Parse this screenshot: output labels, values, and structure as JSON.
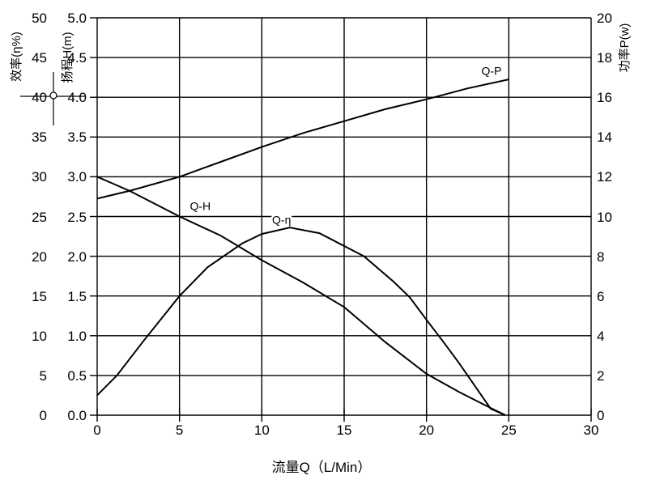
{
  "chart_data": {
    "type": "line",
    "grid": "on",
    "x_axis": {
      "label": "流量Q（L/Min）",
      "min": 0,
      "max": 30,
      "tick_step": 5,
      "ticks": [
        "0",
        "5",
        "10",
        "15",
        "20",
        "25",
        "30"
      ]
    },
    "left_axis_efficiency": {
      "label": "效率(η%)",
      "min": 0,
      "max": 50,
      "tick_step": 5,
      "ticks": [
        "50",
        "45",
        "40",
        "35",
        "30",
        "25",
        "20",
        "15",
        "10",
        "5",
        "0"
      ]
    },
    "left_axis_head": {
      "label": "扬程H(m)",
      "min": 0,
      "max": 5,
      "tick_step": 0.5,
      "ticks": [
        "5.0",
        "4.5",
        "4.0",
        "3.5",
        "3.0",
        "2.5",
        "2.0",
        "1.5",
        "1.0",
        "0.5",
        "0.0"
      ]
    },
    "right_axis_power": {
      "label": "功率P(w)",
      "min": 0,
      "max": 20,
      "tick_step": 2,
      "ticks": [
        "20",
        "18",
        "16",
        "14",
        "12",
        "10",
        "8",
        "6",
        "4",
        "2",
        "0"
      ]
    },
    "series": [
      {
        "id": "q-p",
        "name": "Q-P",
        "axis": "power",
        "points": [
          [
            0,
            10.9
          ],
          [
            2,
            11.3
          ],
          [
            5,
            12.0
          ],
          [
            7.5,
            12.75
          ],
          [
            10,
            13.5
          ],
          [
            12.5,
            14.2
          ],
          [
            15,
            14.8
          ],
          [
            17.5,
            15.4
          ],
          [
            20,
            15.9
          ],
          [
            22.5,
            16.45
          ],
          [
            25,
            16.9
          ]
        ]
      },
      {
        "id": "q-h",
        "name": "Q-H",
        "axis": "head",
        "points": [
          [
            0,
            3.0
          ],
          [
            2,
            2.82
          ],
          [
            5,
            2.5
          ],
          [
            7.5,
            2.26
          ],
          [
            10,
            1.95
          ],
          [
            12.5,
            1.67
          ],
          [
            15,
            1.36
          ],
          [
            17.5,
            0.92
          ],
          [
            20,
            0.52
          ],
          [
            22,
            0.29
          ],
          [
            24,
            0.08
          ],
          [
            24.8,
            0
          ]
        ]
      },
      {
        "id": "q-eta",
        "name": "Q-η",
        "axis": "efficiency",
        "points": [
          [
            0,
            2.5
          ],
          [
            1.2,
            5.0
          ],
          [
            2.8,
            9.3
          ],
          [
            5,
            15.0
          ],
          [
            6.7,
            18.6
          ],
          [
            8.8,
            21.6
          ],
          [
            10,
            22.8
          ],
          [
            11.7,
            23.6
          ],
          [
            13.5,
            22.9
          ],
          [
            16.2,
            20.0
          ],
          [
            18,
            16.8
          ],
          [
            19,
            14.8
          ],
          [
            20,
            12.0
          ],
          [
            21,
            9.3
          ],
          [
            22,
            6.5
          ],
          [
            23.9,
            0.8
          ],
          [
            24.8,
            0
          ]
        ]
      }
    ],
    "curve_labels": [
      {
        "id": "q-p",
        "text": "Q-P",
        "q": 23.95,
        "value": 17.3,
        "axis": "power"
      },
      {
        "id": "q-h",
        "text": "Q-H",
        "q": 6.26,
        "value": 2.63,
        "axis": "head"
      },
      {
        "id": "q-eta",
        "text": "Q-η",
        "q": 11.2,
        "value": 24.5,
        "axis": "efficiency"
      }
    ]
  }
}
